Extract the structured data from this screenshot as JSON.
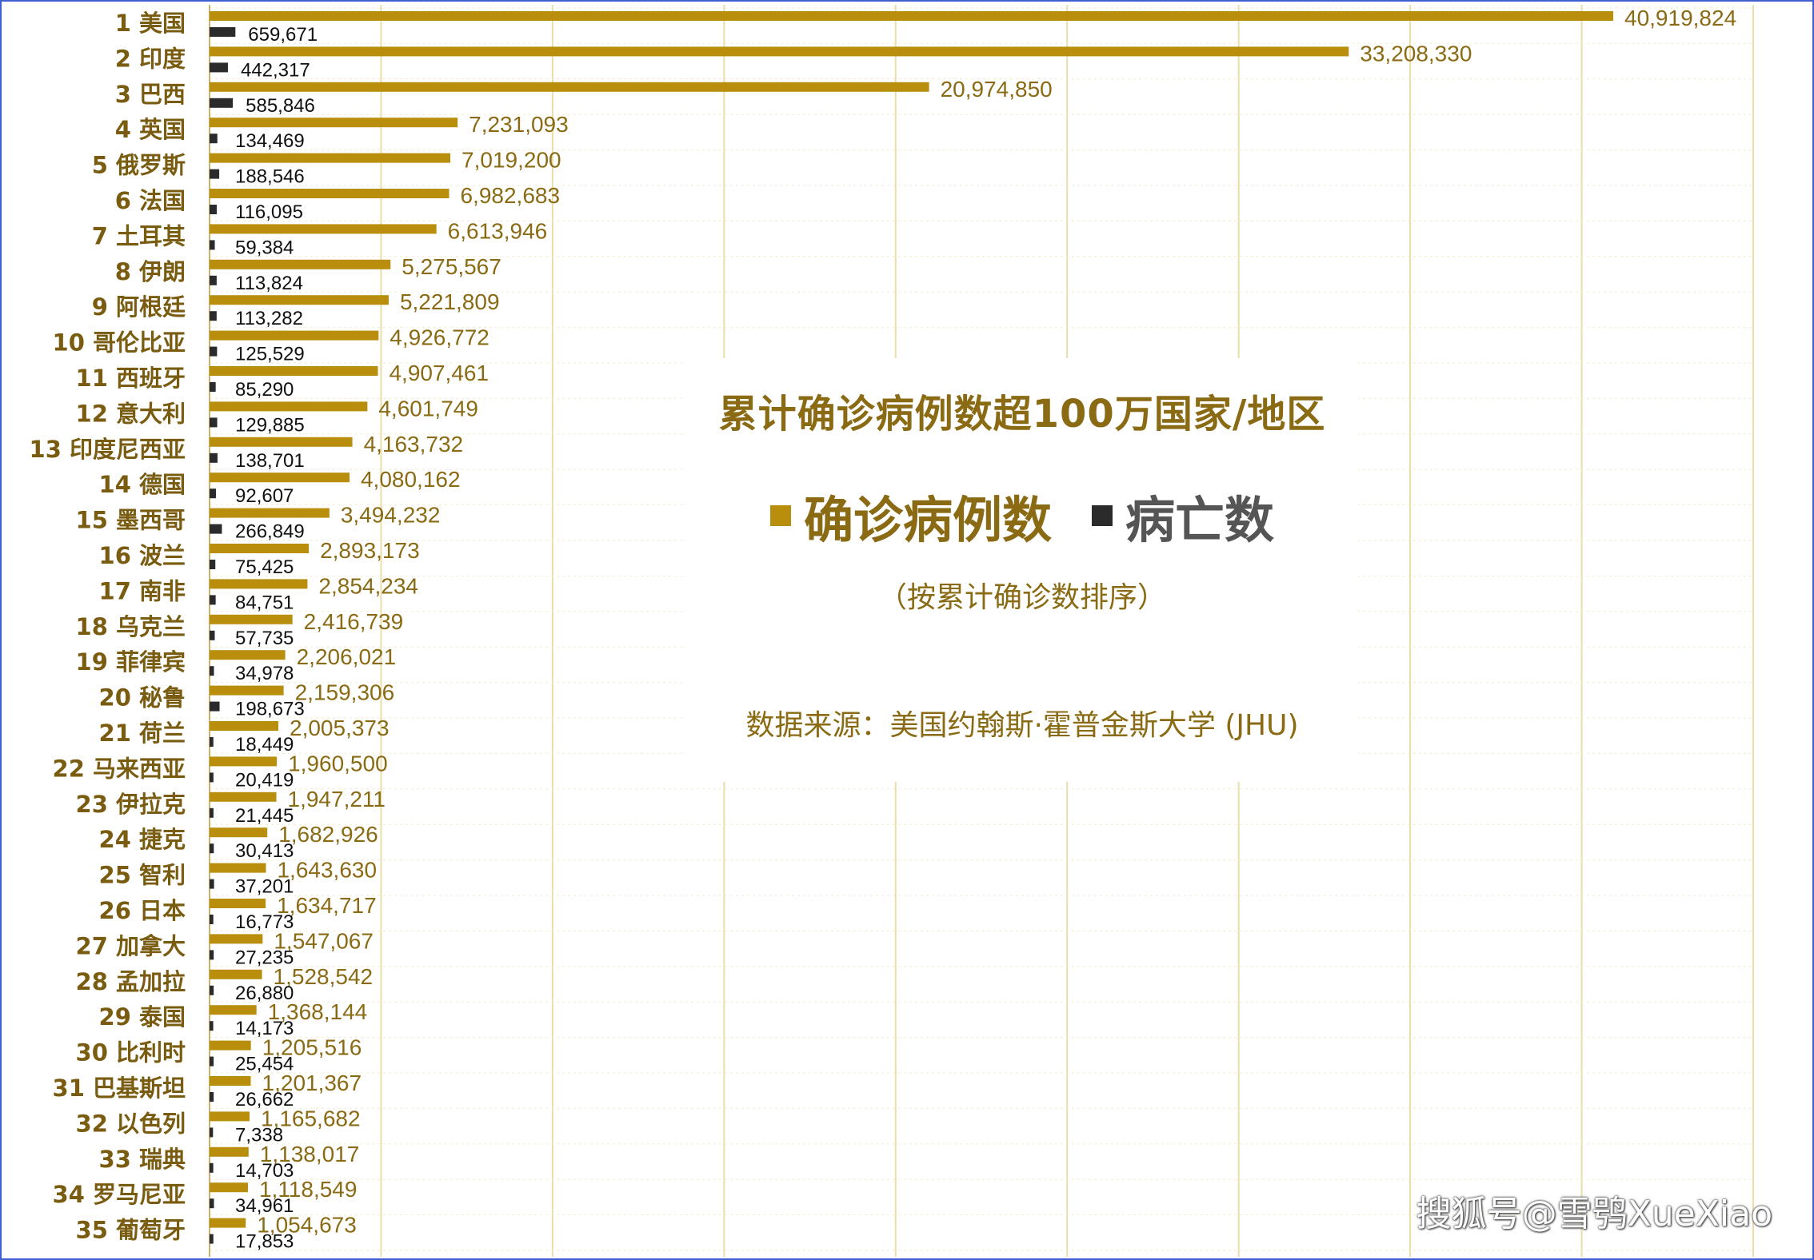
{
  "chart_data": {
    "type": "bar",
    "orientation": "horizontal",
    "title": "累计确诊病例数超100万国家/地区",
    "subtitle": "（按累计确诊数排序）",
    "source": "数据来源：美国约翰斯·霍普金斯大学 (JHU)",
    "legend_position": "center-right",
    "grid": true,
    "xlim": [
      0,
      45000000
    ],
    "categories": [
      "1 美国",
      "2 印度",
      "3 巴西",
      "4 英国",
      "5 俄罗斯",
      "6 法国",
      "7 土耳其",
      "8 伊朗",
      "9 阿根廷",
      "10 哥伦比亚",
      "11 西班牙",
      "12 意大利",
      "13 印度尼西亚",
      "14 德国",
      "15 墨西哥",
      "16 波兰",
      "17 南非",
      "18 乌克兰",
      "19 菲律宾",
      "20 秘鲁",
      "21 荷兰",
      "22 马来西亚",
      "23 伊拉克",
      "24 捷克",
      "25 智利",
      "26 日本",
      "27 加拿大",
      "28 孟加拉",
      "29 泰国",
      "30 比利时",
      "31 巴基斯坦",
      "32 以色列",
      "33 瑞典",
      "34 罗马尼亚",
      "35 葡萄牙"
    ],
    "series": [
      {
        "name": "确诊病例数",
        "color": "#b88e0c",
        "values": [
          40919824,
          33208330,
          20974850,
          7231093,
          7019200,
          6982683,
          6613946,
          5275567,
          5221809,
          4926772,
          4907461,
          4601749,
          4163732,
          4080162,
          3494232,
          2893173,
          2854234,
          2416739,
          2206021,
          2159306,
          2005373,
          1960500,
          1947211,
          1682926,
          1643630,
          1634717,
          1547067,
          1528542,
          1368144,
          1205516,
          1201367,
          1165682,
          1138017,
          1118549,
          1054673
        ],
        "labels": [
          "40,919,824",
          "33,208,330",
          "20,974,850",
          "7,231,093",
          "7,019,200",
          "6,982,683",
          "6,613,946",
          "5,275,567",
          "5,221,809",
          "4,926,772",
          "4,907,461",
          "4,601,749",
          "4,163,732",
          "4,080,162",
          "3,494,232",
          "2,893,173",
          "2,854,234",
          "2,416,739",
          "2,206,021",
          "2,159,306",
          "2,005,373",
          "1,960,500",
          "1,947,211",
          "1,682,926",
          "1,643,630",
          "1,634,717",
          "1,547,067",
          "1,528,542",
          "1,368,144",
          "1,205,516",
          "1,201,367",
          "1,165,682",
          "1,138,017",
          "1,118,549",
          "1,054,673"
        ]
      },
      {
        "name": "病亡数",
        "color": "#2b2b2b",
        "values": [
          659671,
          442317,
          585846,
          134469,
          188546,
          116095,
          59384,
          113824,
          113282,
          125529,
          85290,
          129885,
          138701,
          92607,
          266849,
          75425,
          84751,
          57735,
          34978,
          198673,
          18449,
          20419,
          21445,
          30413,
          37201,
          16773,
          27235,
          26880,
          14173,
          25454,
          26662,
          7338,
          14703,
          34961,
          17853
        ],
        "labels": [
          "659,671",
          "442,317",
          "585,846",
          "134,469",
          "188,546",
          "116,095",
          "59,384",
          "113,824",
          "113,282",
          "125,529",
          "85,290",
          "129,885",
          "138,701",
          "92,607",
          "266,849",
          "75,425",
          "84,751",
          "57,735",
          "34,978",
          "198,673",
          "18,449",
          "20,419",
          "21,445",
          "30,413",
          "37,201",
          "16,773",
          "27,235",
          "26,880",
          "14,173",
          "25,454",
          "26,662",
          "7,338",
          "14,703",
          "34,961",
          "17,853"
        ]
      }
    ]
  },
  "watermark": "搜狐号@雪鸮XueXiao"
}
